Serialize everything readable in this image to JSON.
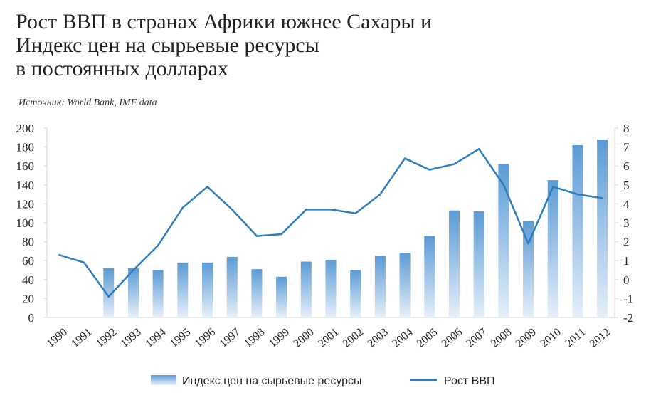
{
  "title_lines": [
    "Рост ВВП в странах Африки южнее Сахары и",
    "Индекс цен на сырьевые ресурсы",
    "в постоянных долларах"
  ],
  "source": "Источник: World Bank, IMF data",
  "colors": {
    "bar_top": "#5b9bd5",
    "bar_bottom": "#e6eff9",
    "line": "#2e7dbf",
    "grid": "#d9d9d9"
  },
  "chart_data": {
    "type": "bar+line",
    "categories": [
      "1990",
      "1991",
      "1992",
      "1993",
      "1994",
      "1995",
      "1996",
      "1997",
      "1998",
      "1999",
      "2000",
      "2001",
      "2002",
      "2003",
      "2004",
      "2005",
      "2006",
      "2007",
      "2008",
      "2009",
      "2010",
      "2011",
      "2012"
    ],
    "series": [
      {
        "name": "Индекс цен на сырьевые ресурсы",
        "type": "bar",
        "axis": "left",
        "values": [
          null,
          null,
          52,
          52,
          50,
          58,
          58,
          64,
          51,
          43,
          59,
          61,
          50,
          65,
          68,
          86,
          113,
          112,
          162,
          102,
          145,
          182,
          188
        ]
      },
      {
        "name": "Рост ВВП",
        "type": "line",
        "axis": "right",
        "values": [
          1.3,
          0.9,
          -0.9,
          0.5,
          1.8,
          3.8,
          4.9,
          3.7,
          2.3,
          2.4,
          3.7,
          3.7,
          3.5,
          4.5,
          6.4,
          5.8,
          6.1,
          6.9,
          5.0,
          1.9,
          4.9,
          4.5,
          4.3
        ]
      }
    ],
    "y_left": {
      "min": 0,
      "max": 200,
      "ticks": [
        "0",
        "20",
        "40",
        "60",
        "80",
        "100",
        "120",
        "140",
        "160",
        "180",
        "200"
      ]
    },
    "y_right": {
      "min": -2,
      "max": 8,
      "ticks": [
        "-2",
        "-1",
        "0",
        "1",
        "2",
        "3",
        "4",
        "5",
        "6",
        "7",
        "8"
      ]
    },
    "grid": false,
    "legend_position": "bottom"
  }
}
